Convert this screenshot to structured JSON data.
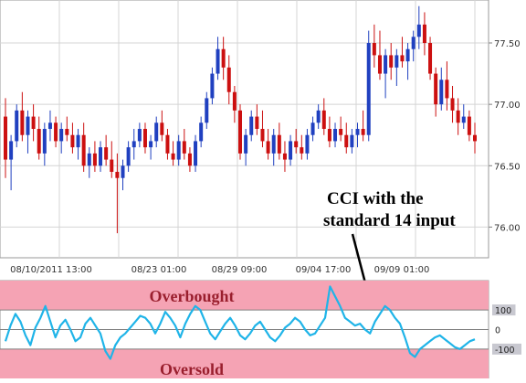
{
  "chart_data": [
    {
      "type": "candlestick",
      "title": "",
      "xlabel": "",
      "ylabel": "",
      "x_tick_labels": [
        "08/10/2011 13:00",
        "08/23 01:00",
        "08/29 09:00",
        "09/04 17:00",
        "09/09 01:00"
      ],
      "y_tick_labels": [
        "77.50",
        "77.00",
        "76.50",
        "76.00"
      ],
      "ylim": [
        75.75,
        77.85
      ],
      "grid": true,
      "colors": {
        "up": "#2040c0",
        "down": "#cc1010",
        "grid": "#d4d4d4",
        "axis": "#808080"
      },
      "annotation": {
        "line1": "CCI with the",
        "line2": "standard 14 input"
      },
      "candles": [
        [
          76.9,
          77.05,
          76.4,
          76.55
        ],
        [
          76.55,
          76.75,
          76.3,
          76.7
        ],
        [
          76.7,
          77.0,
          76.65,
          76.95
        ],
        [
          76.95,
          77.1,
          76.7,
          76.75
        ],
        [
          76.75,
          76.95,
          76.6,
          76.9
        ],
        [
          76.9,
          77.0,
          76.7,
          76.8
        ],
        [
          76.8,
          76.9,
          76.55,
          76.6
        ],
        [
          76.6,
          76.85,
          76.5,
          76.8
        ],
        [
          76.8,
          76.95,
          76.7,
          76.85
        ],
        [
          76.85,
          76.9,
          76.65,
          76.7
        ],
        [
          76.7,
          76.85,
          76.6,
          76.8
        ],
        [
          76.8,
          76.9,
          76.7,
          76.75
        ],
        [
          76.75,
          76.85,
          76.6,
          76.65
        ],
        [
          76.65,
          76.8,
          76.55,
          76.75
        ],
        [
          76.75,
          76.85,
          76.45,
          76.5
        ],
        [
          76.5,
          76.65,
          76.4,
          76.6
        ],
        [
          76.6,
          76.7,
          76.45,
          76.5
        ],
        [
          76.5,
          76.7,
          76.45,
          76.65
        ],
        [
          76.65,
          76.75,
          76.5,
          76.55
        ],
        [
          76.55,
          76.7,
          76.4,
          76.45
        ],
        [
          76.45,
          76.6,
          75.95,
          76.4
        ],
        [
          76.4,
          76.55,
          76.3,
          76.5
        ],
        [
          76.5,
          76.7,
          76.45,
          76.65
        ],
        [
          76.65,
          76.8,
          76.55,
          76.7
        ],
        [
          76.7,
          76.85,
          76.65,
          76.8
        ],
        [
          76.8,
          76.85,
          76.6,
          76.65
        ],
        [
          76.65,
          76.75,
          76.55,
          76.7
        ],
        [
          76.7,
          76.9,
          76.65,
          76.85
        ],
        [
          76.85,
          76.95,
          76.7,
          76.75
        ],
        [
          76.75,
          76.8,
          76.55,
          76.6
        ],
        [
          76.6,
          76.7,
          76.5,
          76.55
        ],
        [
          76.55,
          76.75,
          76.5,
          76.7
        ],
        [
          76.7,
          76.8,
          76.55,
          76.6
        ],
        [
          76.6,
          76.65,
          76.45,
          76.5
        ],
        [
          76.5,
          76.75,
          76.45,
          76.7
        ],
        [
          76.7,
          76.9,
          76.65,
          76.85
        ],
        [
          76.85,
          77.1,
          76.8,
          77.05
        ],
        [
          77.05,
          77.3,
          77.0,
          77.25
        ],
        [
          77.25,
          77.55,
          77.2,
          77.45
        ],
        [
          77.45,
          77.55,
          77.2,
          77.3
        ],
        [
          77.3,
          77.4,
          77.0,
          77.1
        ],
        [
          77.1,
          77.15,
          76.85,
          76.95
        ],
        [
          76.95,
          77.0,
          76.55,
          76.6
        ],
        [
          76.6,
          76.8,
          76.5,
          76.75
        ],
        [
          76.75,
          76.95,
          76.7,
          76.9
        ],
        [
          76.9,
          77.0,
          76.75,
          76.8
        ],
        [
          76.8,
          76.95,
          76.65,
          76.7
        ],
        [
          76.7,
          76.8,
          76.55,
          76.6
        ],
        [
          76.6,
          76.8,
          76.5,
          76.75
        ],
        [
          76.75,
          76.85,
          76.55,
          76.6
        ],
        [
          76.6,
          76.7,
          76.45,
          76.55
        ],
        [
          76.55,
          76.75,
          76.5,
          76.7
        ],
        [
          76.7,
          76.8,
          76.6,
          76.65
        ],
        [
          76.65,
          76.75,
          76.55,
          76.6
        ],
        [
          76.6,
          76.8,
          76.55,
          76.75
        ],
        [
          76.75,
          76.9,
          76.7,
          76.85
        ],
        [
          76.85,
          77.0,
          76.8,
          76.95
        ],
        [
          76.95,
          77.05,
          76.75,
          76.8
        ],
        [
          76.8,
          76.9,
          76.65,
          76.7
        ],
        [
          76.7,
          76.85,
          76.65,
          76.8
        ],
        [
          76.8,
          76.9,
          76.7,
          76.75
        ],
        [
          76.75,
          76.85,
          76.6,
          76.65
        ],
        [
          76.65,
          76.8,
          76.6,
          76.75
        ],
        [
          76.75,
          76.85,
          76.65,
          76.8
        ],
        [
          76.8,
          76.95,
          76.7,
          76.75
        ],
        [
          76.75,
          77.6,
          76.7,
          77.5
        ],
        [
          77.5,
          77.65,
          77.3,
          77.4
        ],
        [
          77.4,
          77.6,
          77.2,
          77.25
        ],
        [
          77.25,
          77.45,
          77.05,
          77.4
        ],
        [
          77.4,
          77.5,
          77.2,
          77.3
        ],
        [
          77.3,
          77.45,
          77.15,
          77.4
        ],
        [
          77.4,
          77.55,
          77.3,
          77.35
        ],
        [
          77.35,
          77.5,
          77.2,
          77.45
        ],
        [
          77.45,
          77.6,
          77.35,
          77.55
        ],
        [
          77.55,
          77.8,
          77.45,
          77.65
        ],
        [
          77.65,
          77.75,
          77.4,
          77.5
        ],
        [
          77.5,
          77.55,
          77.2,
          77.25
        ],
        [
          77.25,
          77.3,
          76.9,
          77.0
        ],
        [
          77.0,
          77.3,
          76.95,
          77.2
        ],
        [
          77.2,
          77.35,
          76.95,
          77.05
        ],
        [
          77.05,
          77.15,
          76.85,
          76.95
        ],
        [
          76.95,
          77.05,
          76.75,
          76.85
        ],
        [
          76.85,
          77.0,
          76.8,
          76.9
        ],
        [
          76.9,
          76.95,
          76.7,
          76.75
        ],
        [
          76.75,
          76.85,
          76.6,
          76.7
        ]
      ]
    },
    {
      "type": "line",
      "title": "",
      "overbought_label": "Overbought",
      "oversold_label": "Oversold",
      "y_tick_labels": [
        "100",
        "0",
        "-100"
      ],
      "ylim": [
        -250,
        250
      ],
      "colors": {
        "line": "#1fb4e8",
        "zone": "#f5a3b4",
        "band": "#ffffff"
      },
      "values": [
        -60,
        20,
        80,
        40,
        -30,
        -80,
        10,
        60,
        120,
        40,
        -40,
        20,
        50,
        0,
        -60,
        -40,
        30,
        60,
        20,
        -20,
        -110,
        -150,
        -80,
        -40,
        -20,
        10,
        40,
        70,
        60,
        30,
        -20,
        30,
        90,
        60,
        20,
        -40,
        30,
        80,
        120,
        100,
        40,
        -20,
        -50,
        -10,
        30,
        60,
        20,
        -30,
        -50,
        -20,
        20,
        40,
        0,
        -40,
        -60,
        -30,
        10,
        30,
        60,
        40,
        0,
        -30,
        -20,
        20,
        60,
        220,
        170,
        120,
        60,
        40,
        20,
        30,
        0,
        -20,
        40,
        80,
        120,
        100,
        60,
        30,
        -40,
        -120,
        -140,
        -100,
        -80,
        -60,
        -40,
        -30,
        -50,
        -70,
        -90,
        -100,
        -80,
        -60,
        -50
      ]
    }
  ]
}
